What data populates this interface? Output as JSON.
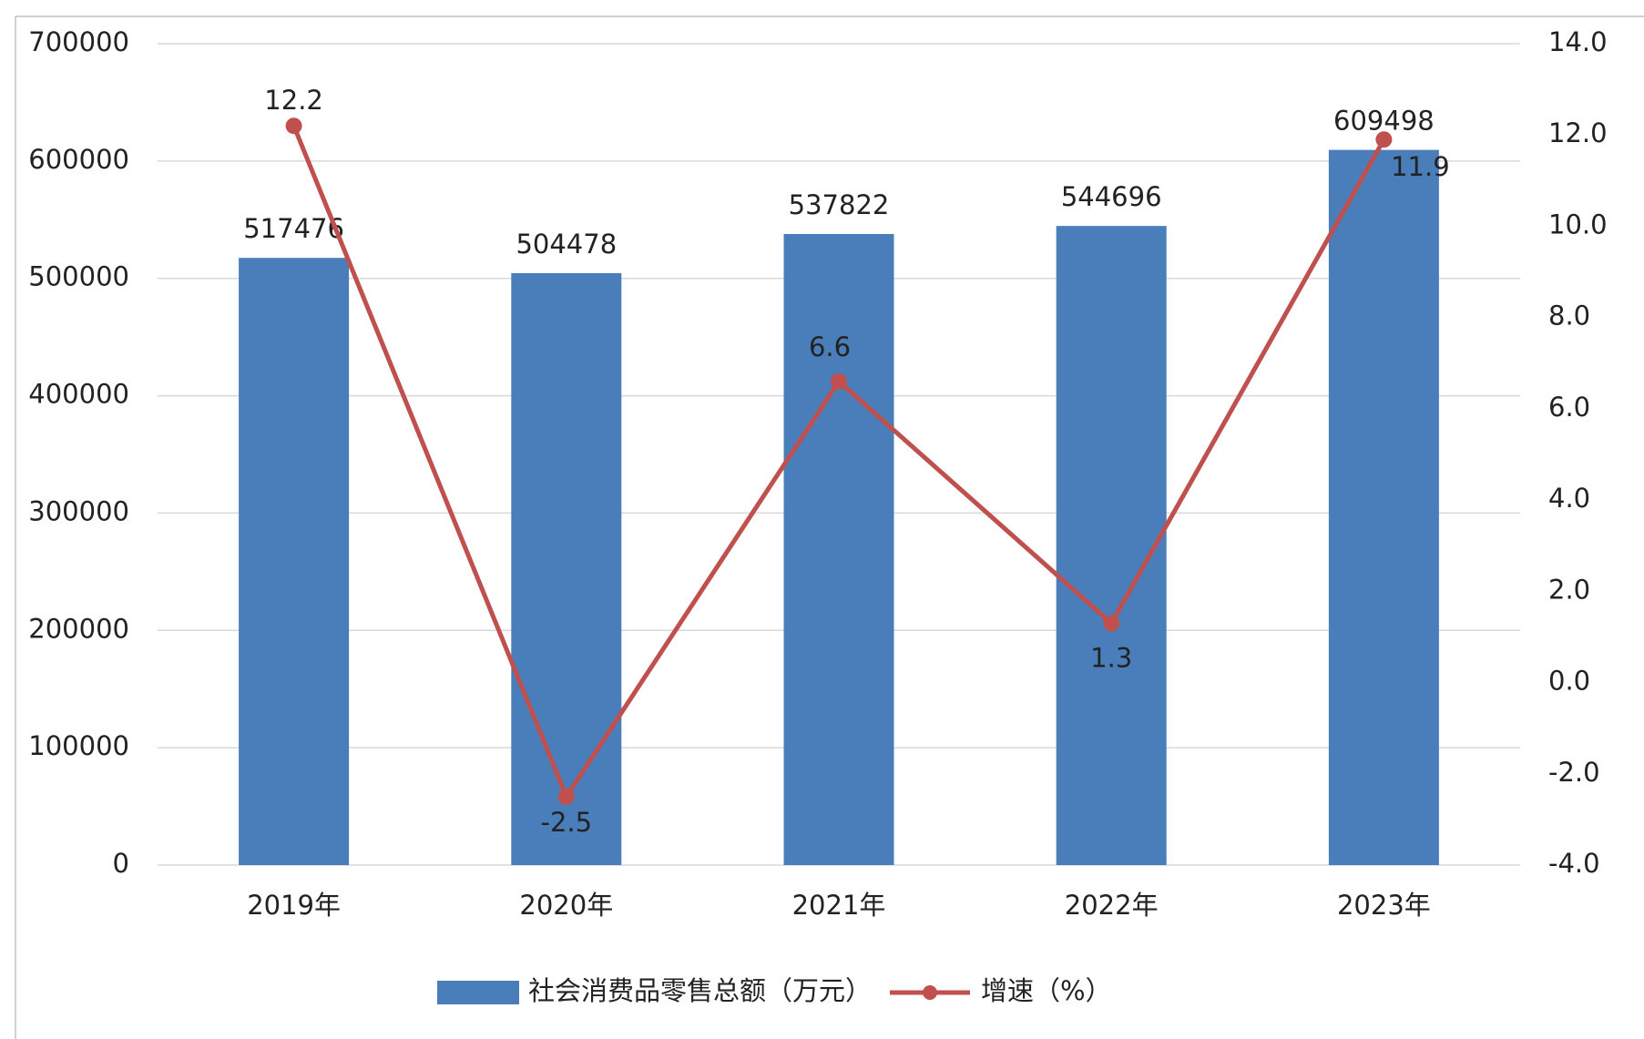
{
  "chart_data": {
    "type": "bar_line",
    "categories": [
      "2019年",
      "2020年",
      "2021年",
      "2022年",
      "2023年"
    ],
    "series": [
      {
        "name": "社会消费品零售总额（万元）",
        "type": "bar",
        "color": "#4a7ebb",
        "axis": "y",
        "values": [
          517476,
          504478,
          537822,
          544696,
          609498
        ]
      },
      {
        "name": "增速（%）",
        "type": "line",
        "color": "#c0504d",
        "axis": "y2",
        "values": [
          12.2,
          -2.5,
          6.6,
          1.3,
          11.9
        ]
      }
    ],
    "ylim": [
      0,
      700000
    ],
    "yticks": [
      0,
      100000,
      200000,
      300000,
      400000,
      500000,
      600000,
      700000
    ],
    "y2lim": [
      -4,
      14
    ],
    "y2ticks": [
      {
        "value": -4,
        "label": "-4.0"
      },
      {
        "value": -2,
        "label": "-2.0"
      },
      {
        "value": 0,
        "label": "0.0"
      },
      {
        "value": 2,
        "label": "2.0"
      },
      {
        "value": 4,
        "label": "4.0"
      },
      {
        "value": 6,
        "label": "6.0"
      },
      {
        "value": 8,
        "label": "8.0"
      },
      {
        "value": 10,
        "label": "10.0"
      },
      {
        "value": 12,
        "label": "12.0"
      },
      {
        "value": 14,
        "label": "14.0"
      }
    ],
    "grid": true,
    "legend": "bottom"
  }
}
